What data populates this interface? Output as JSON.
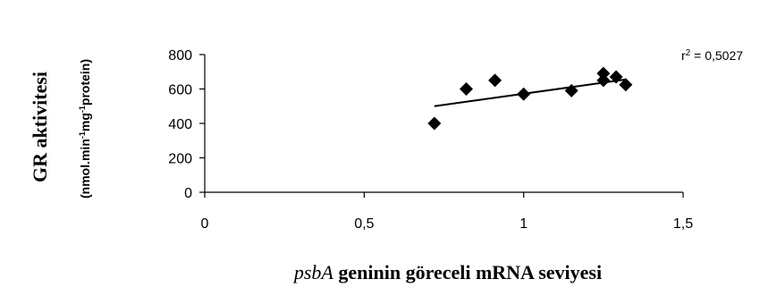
{
  "chart_data": {
    "type": "scatter",
    "x": [
      0.72,
      0.82,
      0.91,
      1.0,
      1.15,
      1.25,
      1.25,
      1.29,
      1.32
    ],
    "y": [
      400,
      600,
      650,
      570,
      590,
      690,
      650,
      670,
      625
    ],
    "trendline": {
      "x_start": 0.72,
      "y_start": 500,
      "x_end": 1.32,
      "y_end": 655
    },
    "xlim": [
      0,
      1.5
    ],
    "ylim": [
      0,
      800
    ],
    "x_ticks": [
      0,
      0.5,
      1,
      1.5
    ],
    "x_tick_labels": [
      "0",
      "0,5",
      "1",
      "1,5"
    ],
    "y_ticks": [
      0,
      200,
      400,
      600,
      800
    ],
    "y_tick_labels": [
      "0",
      "200",
      "400",
      "600",
      "800"
    ],
    "xlabel_italic": "psbA",
    "xlabel_rest": " geninin göreceli mRNA seviyesi",
    "ylabel_line1": "GR aktivitesi",
    "ylabel_line2_parts": [
      "(nmol.min",
      "-1",
      "mg",
      "-1",
      "protein)"
    ],
    "r2_label": "r",
    "r2_sup": "2",
    "r2_value": " = 0,5027",
    "grid": false,
    "legend": "none",
    "marker": "diamond",
    "colors": {
      "marker": "#000000",
      "line": "#000000",
      "axis": "#000000"
    }
  }
}
